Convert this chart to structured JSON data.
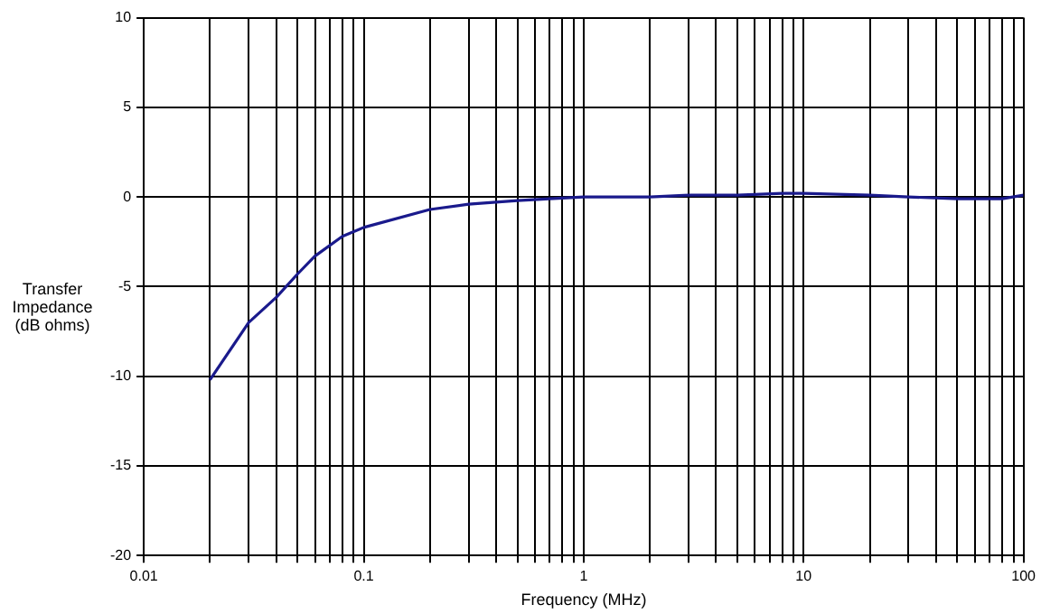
{
  "chart_data": {
    "type": "line",
    "xlabel": "Frequency (MHz)",
    "ylabel": "Transfer Impedance (dB ohms)",
    "log": "x",
    "grid": true,
    "legend": false,
    "marker": "none",
    "line_style": "solid",
    "xlim": [
      0.01,
      100
    ],
    "ylim": [
      -20,
      10
    ],
    "xticks": [
      0.01,
      {
        "value": 0.02,
        "label": null
      },
      {
        "value": 0.03,
        "label": null
      },
      {
        "value": 0.04,
        "label": null
      },
      {
        "value": 0.05,
        "label": null
      },
      {
        "value": 0.06,
        "label": null
      },
      {
        "value": 0.07,
        "label": null
      },
      {
        "value": 0.08,
        "label": null
      },
      {
        "value": 0.09,
        "label": null
      },
      0.1,
      {
        "value": 0.2,
        "label": null
      },
      {
        "value": 0.3,
        "label": null
      },
      {
        "value": 0.4,
        "label": null
      },
      {
        "value": 0.5,
        "label": null
      },
      {
        "value": 0.6,
        "label": null
      },
      {
        "value": 0.7,
        "label": null
      },
      {
        "value": 0.8,
        "label": null
      },
      {
        "value": 0.9,
        "label": null
      },
      1,
      {
        "value": 2,
        "label": null
      },
      {
        "value": 3,
        "label": null
      },
      {
        "value": 4,
        "label": null
      },
      {
        "value": 5,
        "label": null
      },
      {
        "value": 6,
        "label": null
      },
      {
        "value": 7,
        "label": null
      },
      {
        "value": 8,
        "label": null
      },
      {
        "value": 9,
        "label": null
      },
      10,
      {
        "value": 20,
        "label": null
      },
      {
        "value": 30,
        "label": null
      },
      {
        "value": 40,
        "label": null
      },
      {
        "value": 50,
        "label": null
      },
      {
        "value": 60,
        "label": null
      },
      {
        "value": 70,
        "label": null
      },
      {
        "value": 80,
        "label": null
      },
      {
        "value": 90,
        "label": null
      },
      100
    ],
    "yticks": [
      -20,
      -15,
      -10,
      -5,
      0,
      5,
      10
    ],
    "x": [
      0.02,
      0.03,
      0.04,
      0.05,
      0.06,
      0.08,
      0.1,
      0.2,
      0.3,
      0.5,
      0.7,
      1,
      2,
      3,
      5,
      8,
      10,
      20,
      30,
      50,
      80,
      100
    ],
    "series": [
      {
        "color": "#1a1a8c",
        "values": [
          -10.2,
          -7.0,
          -5.6,
          -4.3,
          -3.3,
          -2.2,
          -1.7,
          -0.7,
          -0.4,
          -0.2,
          -0.1,
          0,
          0,
          0.1,
          0.1,
          0.2,
          0.2,
          0.1,
          0,
          -0.1,
          -0.1,
          0.1
        ]
      }
    ]
  }
}
